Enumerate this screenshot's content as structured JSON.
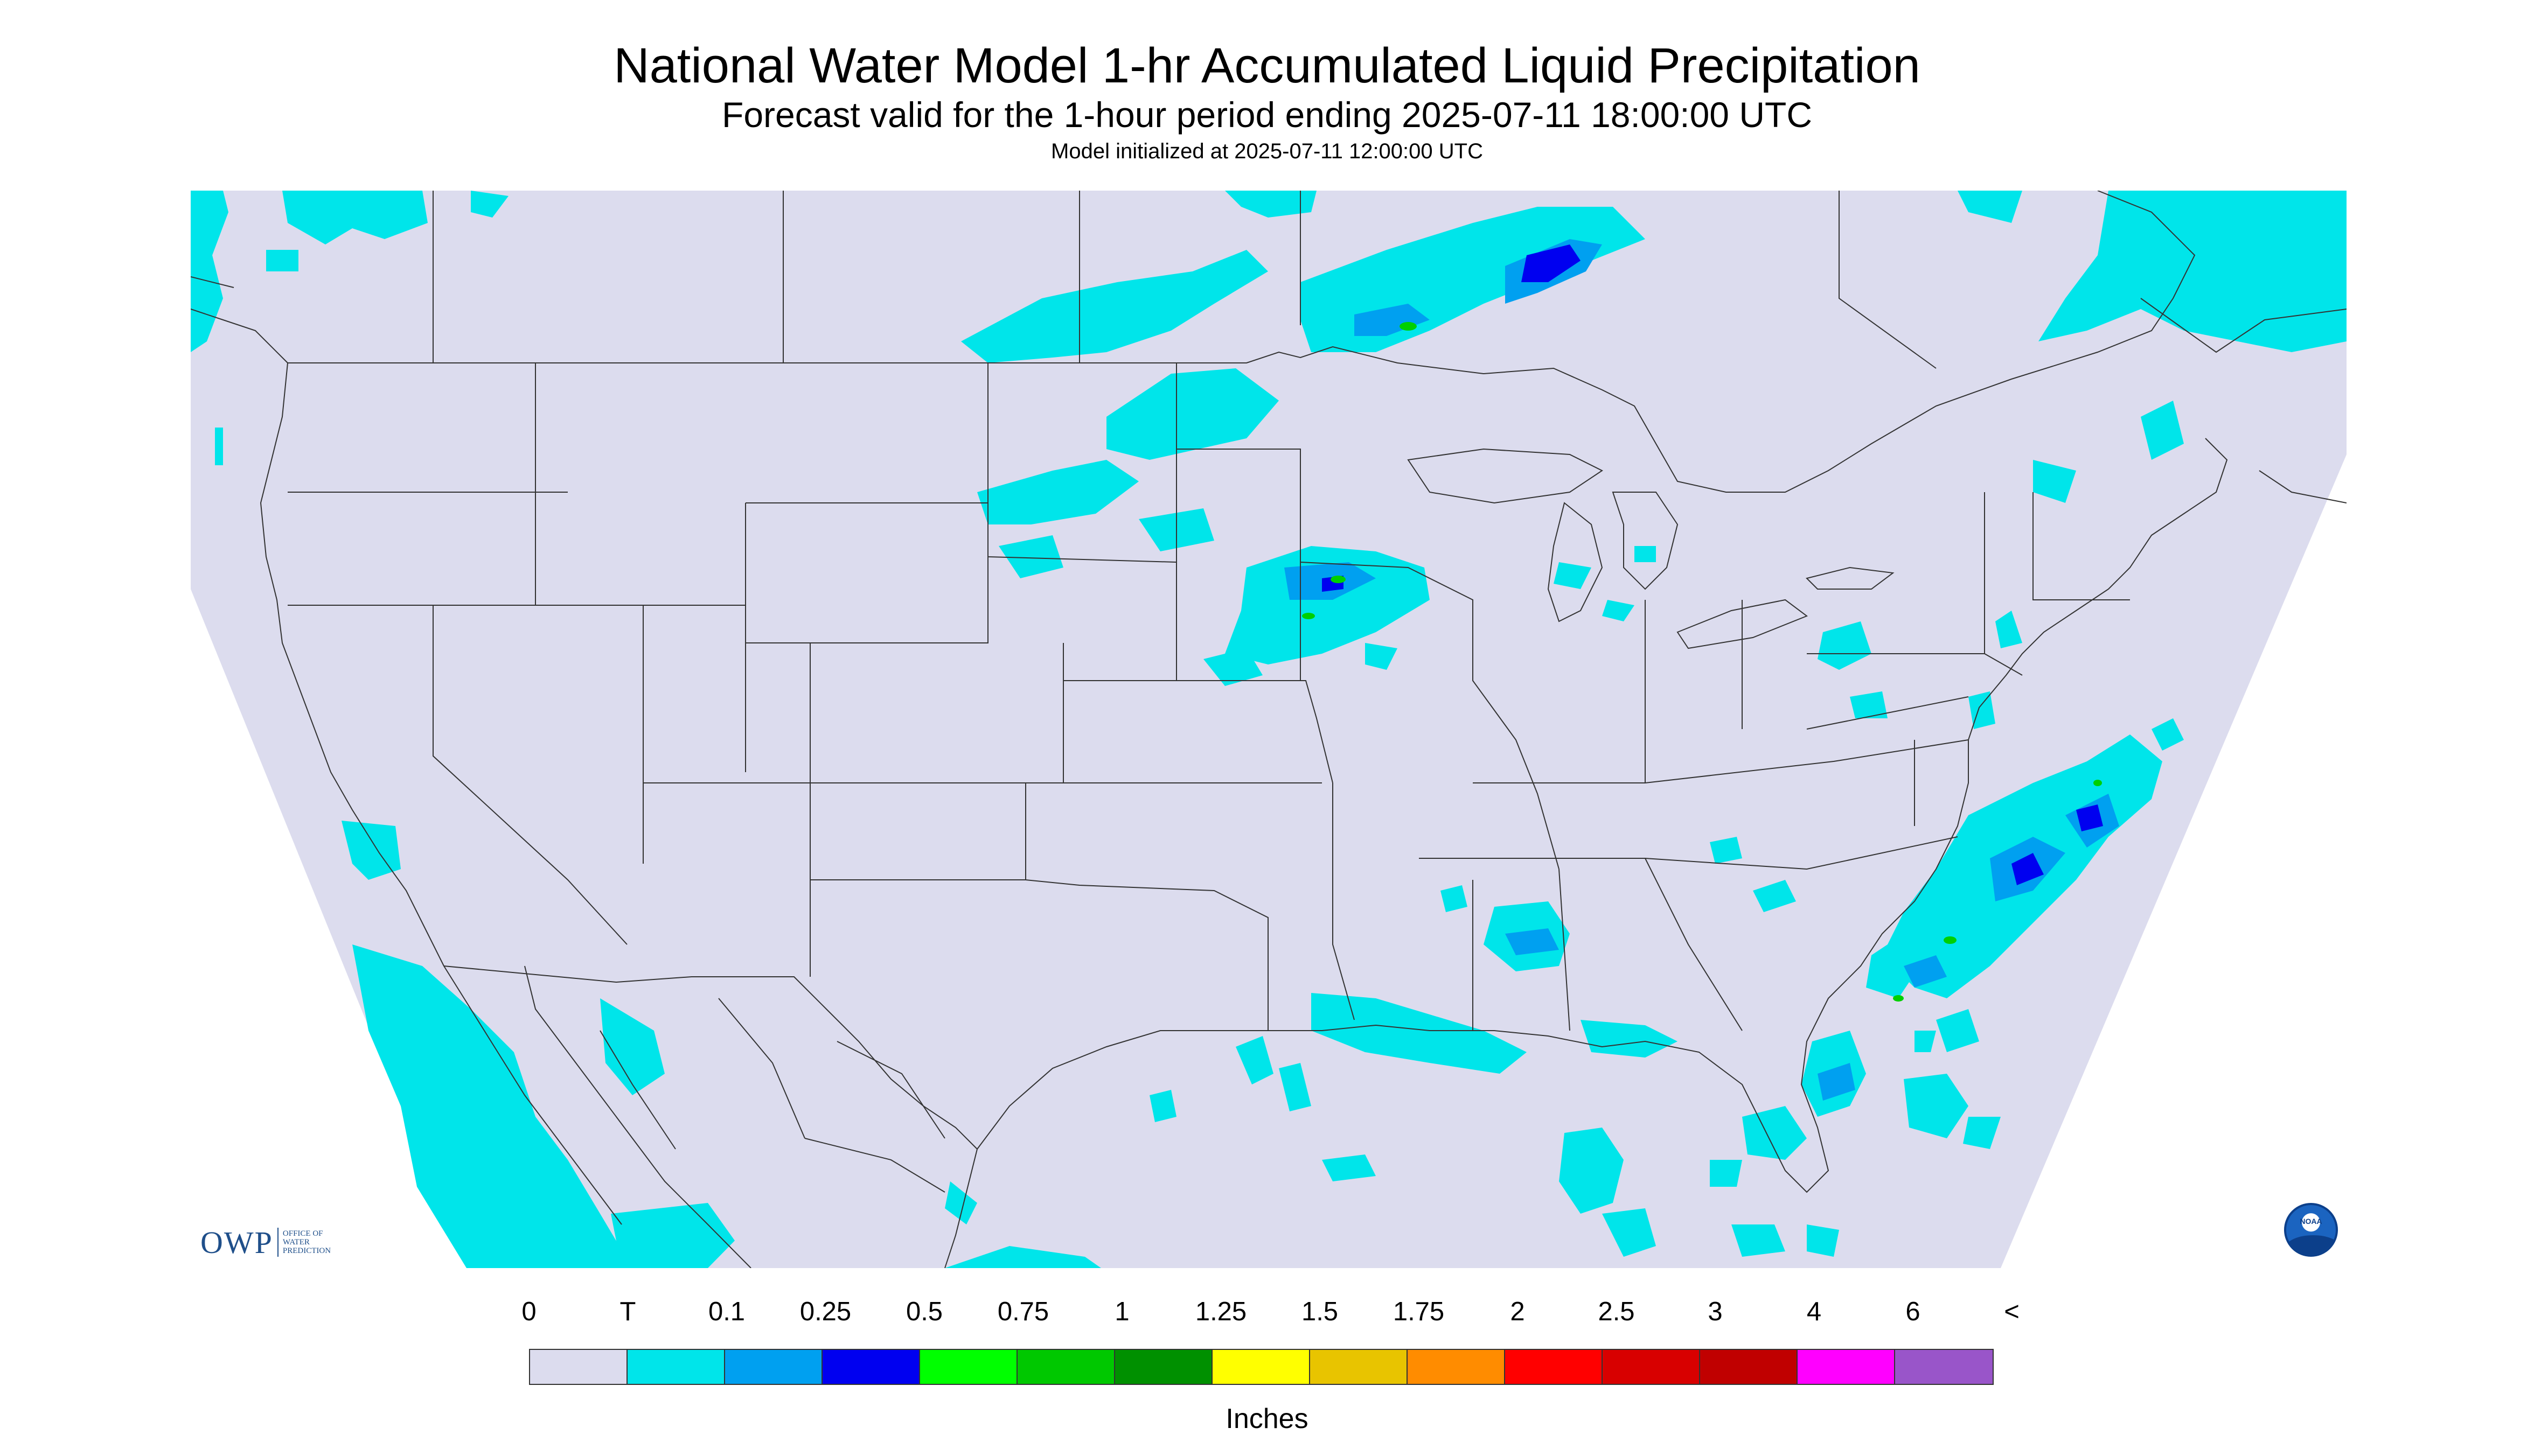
{
  "title": "National Water Model 1-hr Accumulated Liquid Precipitation",
  "subtitle": "Forecast valid for the 1-hour period ending 2025-07-11 18:00:00 UTC",
  "init_line": "Model initialized at 2025-07-11 12:00:00 UTC",
  "owp_logo": {
    "mark": "OWP",
    "text_lines": [
      "OFFICE OF",
      "WATER",
      "PREDICTION"
    ]
  },
  "noaa_logo": {
    "text": "NOAA"
  },
  "colors": {
    "background": "#dcdcee",
    "land_line": "#333333",
    "trace": "#00e5ea",
    "light": "#00a0f0",
    "blue": "#0000f0",
    "green": "#00d000"
  },
  "legend": {
    "labels": [
      "0",
      "T",
      "0.1",
      "0.25",
      "0.5",
      "0.75",
      "1",
      "1.25",
      "1.5",
      "1.75",
      "2",
      "2.5",
      "3",
      "4",
      "6",
      "<"
    ],
    "colors": [
      "#dcdcee",
      "#00e5ea",
      "#00a0f0",
      "#0000f0",
      "#00ff00",
      "#00c800",
      "#009000",
      "#ffff00",
      "#e8c400",
      "#ff8c00",
      "#ff0000",
      "#d80000",
      "#c00000",
      "#ff00ff",
      "#9955c9"
    ],
    "units": "Inches"
  }
}
